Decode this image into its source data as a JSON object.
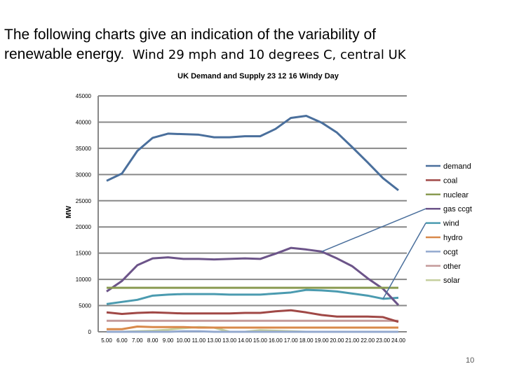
{
  "heading": {
    "line1": "The following charts give an indication of the variability of",
    "line2a": "renewable energy.",
    "line2b": "Wind 29 mph and 10 degrees C, central UK"
  },
  "page_number": "10",
  "chart_data": {
    "type": "line",
    "title": "UK Demand and Supply 23 12 16 Windy Day",
    "xlabel": "",
    "ylabel": "MW",
    "ylim": [
      0,
      45000
    ],
    "yticks": [
      0,
      5000,
      10000,
      15000,
      20000,
      25000,
      30000,
      35000,
      40000,
      45000
    ],
    "grid": true,
    "legend_position": "right",
    "categories": [
      "5.00",
      "6.00",
      "7.00",
      "8.00",
      "9.00",
      "10.00",
      "11.00",
      "13.00",
      "13.00",
      "14.00",
      "15.00",
      "16.00",
      "17.00",
      "18.00",
      "19.00",
      "20.00",
      "21.00",
      "22.00",
      "23.00",
      "24.00"
    ],
    "series": [
      {
        "name": "demand",
        "color": "#4a6f9c",
        "values": [
          28800,
          30200,
          34500,
          37000,
          37800,
          37700,
          37600,
          37100,
          37100,
          37300,
          37300,
          38700,
          40800,
          41200,
          39900,
          38000,
          35200,
          32300,
          29300,
          27000
        ]
      },
      {
        "name": "coal",
        "color": "#a04846",
        "values": [
          3700,
          3400,
          3600,
          3700,
          3600,
          3500,
          3500,
          3500,
          3500,
          3600,
          3600,
          3900,
          4100,
          3700,
          3200,
          2900,
          2900,
          2900,
          2800,
          1900
        ]
      },
      {
        "name": "nuclear",
        "color": "#8a9b52",
        "values": [
          8400,
          8400,
          8400,
          8400,
          8400,
          8400,
          8400,
          8400,
          8400,
          8400,
          8400,
          8400,
          8400,
          8400,
          8400,
          8400,
          8400,
          8400,
          8400,
          8400
        ]
      },
      {
        "name": "gas ccgt",
        "color": "#6c5489",
        "values": [
          7700,
          9700,
          12700,
          14000,
          14200,
          13900,
          13900,
          13800,
          13900,
          14000,
          13900,
          14900,
          16000,
          15700,
          15300,
          14000,
          12500,
          10200,
          8200,
          5100
        ]
      },
      {
        "name": "wind",
        "color": "#4b9bb0",
        "values": [
          5300,
          5700,
          6100,
          6900,
          7100,
          7200,
          7200,
          7200,
          7100,
          7100,
          7100,
          7300,
          7500,
          8000,
          7900,
          7700,
          7300,
          6900,
          6300,
          6500
        ]
      },
      {
        "name": "hydro",
        "color": "#d9894a",
        "values": [
          500,
          500,
          1000,
          900,
          900,
          900,
          800,
          800,
          800,
          800,
          800,
          800,
          800,
          800,
          800,
          800,
          800,
          800,
          800,
          800
        ]
      },
      {
        "name": "ocgt",
        "color": "#93a9cf",
        "values": [
          0,
          0,
          0,
          0,
          0,
          100,
          100,
          0,
          0,
          0,
          0,
          0,
          0,
          0,
          0,
          0,
          0,
          0,
          0,
          0
        ]
      },
      {
        "name": "other",
        "color": "#c49a9a",
        "values": [
          2100,
          2100,
          2100,
          2100,
          2100,
          2100,
          2100,
          2100,
          2100,
          2100,
          2100,
          2100,
          2100,
          2100,
          2100,
          2100,
          2100,
          2100,
          2100,
          2100
        ]
      },
      {
        "name": "solar",
        "color": "#c5cf9e",
        "values": [
          0,
          0,
          100,
          200,
          400,
          700,
          900,
          800,
          0,
          0,
          300,
          200,
          100,
          0,
          0,
          0,
          0,
          0,
          0,
          0
        ]
      }
    ],
    "callouts": [
      {
        "series": "gas ccgt",
        "category_index": 14
      },
      {
        "series": "wind",
        "category_index": 18
      }
    ]
  }
}
